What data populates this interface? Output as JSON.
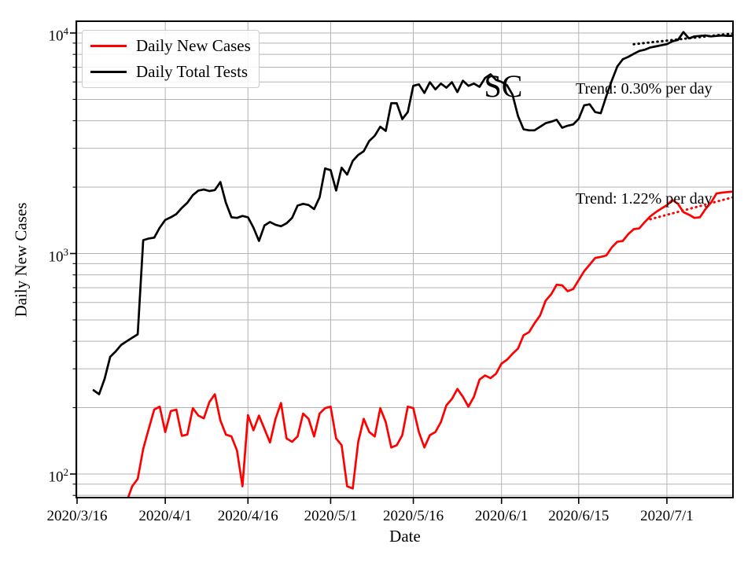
{
  "figure": {
    "state_label": "SC",
    "annotations": {
      "tests_trend": "Trend: 0.30% per day",
      "cases_trend": "Trend: 1.22% per day"
    }
  },
  "chart_data": {
    "type": "line",
    "title": "",
    "xlabel": "Date",
    "ylabel": "Daily New Cases",
    "grid": "both",
    "legend_position": "upper left",
    "colors": {
      "cases": "#ff0000",
      "tests": "#000000",
      "grid": "#b3b3b3",
      "frame": "#000000"
    },
    "x_axis": {
      "label": "Date",
      "ticks": [
        "2020/3/16",
        "2020/4/1",
        "2020/4/16",
        "2020/5/1",
        "2020/5/16",
        "2020/6/1",
        "2020/6/15",
        "2020/7/1"
      ],
      "range": [
        "2020/3/16",
        "2020/7/13"
      ]
    },
    "y_axis": {
      "label": "Daily New Cases",
      "scale": "log",
      "major_ticks": [
        {
          "base": "10",
          "exp": "2",
          "value": 100
        },
        {
          "base": "10",
          "exp": "3",
          "value": 1000
        },
        {
          "base": "10",
          "exp": "4",
          "value": 10000
        }
      ],
      "range": [
        80,
        11300
      ]
    },
    "series": [
      {
        "name": "Daily New Cases",
        "color": "#ff0000",
        "style": "solid",
        "points": [
          [
            "3/25",
            75
          ],
          [
            "3/26",
            88
          ],
          [
            "3/27",
            95
          ],
          [
            "3/28",
            130
          ],
          [
            "3/29",
            160
          ],
          [
            "3/30",
            196
          ],
          [
            "3/31",
            202
          ],
          [
            "4/1",
            155
          ],
          [
            "4/2",
            193
          ],
          [
            "4/3",
            196
          ],
          [
            "4/4",
            149
          ],
          [
            "4/5",
            151
          ],
          [
            "4/6",
            199
          ],
          [
            "4/7",
            184
          ],
          [
            "4/8",
            179
          ],
          [
            "4/9",
            212
          ],
          [
            "4/10",
            230
          ],
          [
            "4/11",
            175
          ],
          [
            "4/12",
            151
          ],
          [
            "4/13",
            148
          ],
          [
            "4/14",
            128
          ],
          [
            "4/15",
            88
          ],
          [
            "4/16",
            185
          ],
          [
            "4/17",
            158
          ],
          [
            "4/18",
            184
          ],
          [
            "4/19",
            160
          ],
          [
            "4/20",
            139
          ],
          [
            "4/21",
            178
          ],
          [
            "4/22",
            210
          ],
          [
            "4/23",
            145
          ],
          [
            "4/24",
            140
          ],
          [
            "4/25",
            148
          ],
          [
            "4/26",
            188
          ],
          [
            "4/27",
            178
          ],
          [
            "4/28",
            148
          ],
          [
            "4/29",
            188
          ],
          [
            "4/30",
            199
          ],
          [
            "5/1",
            202
          ],
          [
            "5/2",
            145
          ],
          [
            "5/3",
            135
          ],
          [
            "5/4",
            88
          ],
          [
            "5/5",
            86
          ],
          [
            "5/6",
            140
          ],
          [
            "5/7",
            178
          ],
          [
            "5/8",
            155
          ],
          [
            "5/9",
            148
          ],
          [
            "5/10",
            199
          ],
          [
            "5/11",
            172
          ],
          [
            "5/12",
            132
          ],
          [
            "5/13",
            135
          ],
          [
            "5/14",
            150
          ],
          [
            "5/15",
            202
          ],
          [
            "5/16",
            199
          ],
          [
            "5/17",
            155
          ],
          [
            "5/18",
            132
          ],
          [
            "5/19",
            150
          ],
          [
            "5/20",
            155
          ],
          [
            "5/21",
            172
          ],
          [
            "5/22",
            205
          ],
          [
            "5/23",
            219
          ],
          [
            "5/24",
            243
          ],
          [
            "5/25",
            224
          ],
          [
            "5/26",
            202
          ],
          [
            "5/27",
            224
          ],
          [
            "5/28",
            268
          ],
          [
            "5/29",
            280
          ],
          [
            "5/30",
            272
          ],
          [
            "5/31",
            285
          ],
          [
            "6/1",
            317
          ],
          [
            "6/2",
            330
          ],
          [
            "6/3",
            351
          ],
          [
            "6/4",
            371
          ],
          [
            "6/5",
            426
          ],
          [
            "6/6",
            440
          ],
          [
            "6/7",
            483
          ],
          [
            "6/8",
            524
          ],
          [
            "6/9",
            611
          ],
          [
            "6/10",
            653
          ],
          [
            "6/11",
            722
          ],
          [
            "6/12",
            717
          ],
          [
            "6/13",
            675
          ],
          [
            "6/14",
            690
          ],
          [
            "6/15",
            758
          ],
          [
            "6/16",
            832
          ],
          [
            "6/17",
            891
          ],
          [
            "6/18",
            955
          ],
          [
            "6/19",
            965
          ],
          [
            "6/20",
            980
          ],
          [
            "6/21",
            1066
          ],
          [
            "6/22",
            1130
          ],
          [
            "6/23",
            1140
          ],
          [
            "6/24",
            1225
          ],
          [
            "6/25",
            1290
          ],
          [
            "6/26",
            1300
          ],
          [
            "6/27",
            1390
          ],
          [
            "6/28",
            1475
          ],
          [
            "6/29",
            1540
          ],
          [
            "6/30",
            1600
          ],
          [
            "7/1",
            1655
          ],
          [
            "7/2",
            1750
          ],
          [
            "7/3",
            1680
          ],
          [
            "7/4",
            1540
          ],
          [
            "7/5",
            1500
          ],
          [
            "7/6",
            1450
          ],
          [
            "7/7",
            1460
          ],
          [
            "7/8",
            1590
          ],
          [
            "7/9",
            1700
          ],
          [
            "7/10",
            1870
          ],
          [
            "7/11",
            1890
          ],
          [
            "7/12",
            1900
          ],
          [
            "7/13",
            1910
          ]
        ]
      },
      {
        "name": "Daily Total Tests",
        "color": "#000000",
        "style": "solid",
        "points": [
          [
            "3/19",
            240
          ],
          [
            "3/20",
            230
          ],
          [
            "3/21",
            270
          ],
          [
            "3/22",
            340
          ],
          [
            "3/23",
            360
          ],
          [
            "3/24",
            385
          ],
          [
            "3/25",
            400
          ],
          [
            "3/26",
            415
          ],
          [
            "3/27",
            430
          ],
          [
            "3/28",
            1150
          ],
          [
            "3/29",
            1170
          ],
          [
            "3/30",
            1180
          ],
          [
            "3/31",
            1310
          ],
          [
            "4/1",
            1420
          ],
          [
            "4/2",
            1460
          ],
          [
            "4/3",
            1510
          ],
          [
            "4/4",
            1610
          ],
          [
            "4/5",
            1700
          ],
          [
            "4/6",
            1840
          ],
          [
            "4/7",
            1930
          ],
          [
            "4/8",
            1950
          ],
          [
            "4/9",
            1920
          ],
          [
            "4/10",
            1940
          ],
          [
            "4/11",
            2110
          ],
          [
            "4/12",
            1700
          ],
          [
            "4/13",
            1460
          ],
          [
            "4/14",
            1450
          ],
          [
            "4/15",
            1480
          ],
          [
            "4/16",
            1460
          ],
          [
            "4/17",
            1310
          ],
          [
            "4/18",
            1140
          ],
          [
            "4/19",
            1340
          ],
          [
            "4/20",
            1390
          ],
          [
            "4/21",
            1350
          ],
          [
            "4/22",
            1330
          ],
          [
            "4/23",
            1370
          ],
          [
            "4/24",
            1450
          ],
          [
            "4/25",
            1650
          ],
          [
            "4/26",
            1680
          ],
          [
            "4/27",
            1660
          ],
          [
            "4/28",
            1590
          ],
          [
            "4/29",
            1800
          ],
          [
            "4/30",
            2430
          ],
          [
            "5/1",
            2390
          ],
          [
            "5/2",
            1930
          ],
          [
            "5/3",
            2450
          ],
          [
            "5/4",
            2280
          ],
          [
            "5/5",
            2630
          ],
          [
            "5/6",
            2800
          ],
          [
            "5/7",
            2910
          ],
          [
            "5/8",
            3240
          ],
          [
            "5/9",
            3420
          ],
          [
            "5/10",
            3760
          ],
          [
            "5/11",
            3600
          ],
          [
            "5/12",
            4810
          ],
          [
            "5/13",
            4800
          ],
          [
            "5/14",
            4070
          ],
          [
            "5/15",
            4380
          ],
          [
            "5/16",
            5760
          ],
          [
            "5/17",
            5850
          ],
          [
            "5/18",
            5350
          ],
          [
            "5/19",
            5980
          ],
          [
            "5/20",
            5550
          ],
          [
            "5/21",
            5900
          ],
          [
            "5/22",
            5650
          ],
          [
            "5/23",
            5980
          ],
          [
            "5/24",
            5400
          ],
          [
            "5/25",
            6080
          ],
          [
            "5/26",
            5760
          ],
          [
            "5/27",
            5900
          ],
          [
            "5/28",
            5700
          ],
          [
            "5/29",
            6250
          ],
          [
            "5/30",
            6500
          ],
          [
            "5/31",
            6130
          ],
          [
            "6/1",
            6000
          ],
          [
            "6/2",
            5800
          ],
          [
            "6/3",
            5250
          ],
          [
            "6/4",
            4200
          ],
          [
            "6/5",
            3660
          ],
          [
            "6/6",
            3620
          ],
          [
            "6/7",
            3620
          ],
          [
            "6/8",
            3760
          ],
          [
            "6/9",
            3900
          ],
          [
            "6/10",
            3960
          ],
          [
            "6/11",
            4040
          ],
          [
            "6/12",
            3720
          ],
          [
            "6/13",
            3800
          ],
          [
            "6/14",
            3850
          ],
          [
            "6/15",
            4080
          ],
          [
            "6/16",
            4700
          ],
          [
            "6/17",
            4750
          ],
          [
            "6/18",
            4380
          ],
          [
            "6/19",
            4330
          ],
          [
            "6/20",
            5170
          ],
          [
            "6/21",
            6080
          ],
          [
            "6/22",
            7050
          ],
          [
            "6/23",
            7600
          ],
          [
            "6/24",
            7800
          ],
          [
            "6/25",
            8050
          ],
          [
            "6/26",
            8290
          ],
          [
            "6/27",
            8400
          ],
          [
            "6/28",
            8600
          ],
          [
            "6/29",
            8700
          ],
          [
            "6/30",
            8800
          ],
          [
            "7/1",
            8900
          ],
          [
            "7/2",
            9170
          ],
          [
            "7/3",
            9300
          ],
          [
            "7/4",
            10100
          ],
          [
            "7/5",
            9450
          ],
          [
            "7/6",
            9650
          ],
          [
            "7/7",
            9700
          ],
          [
            "7/8",
            9750
          ],
          [
            "7/9",
            9650
          ],
          [
            "7/10",
            9700
          ],
          [
            "7/11",
            9750
          ],
          [
            "7/12",
            9700
          ],
          [
            "7/13",
            9720
          ]
        ]
      }
    ],
    "trend_lines": [
      {
        "name": "tests-trend",
        "label": "Trend: 0.30% per day",
        "color": "#000000",
        "style": "dotted",
        "points": [
          [
            "6/25",
            8900
          ],
          [
            "7/13",
            9950
          ]
        ]
      },
      {
        "name": "cases-trend",
        "label": "Trend: 1.22% per day",
        "color": "#ff0000",
        "style": "dotted",
        "points": [
          [
            "6/28",
            1430
          ],
          [
            "7/13",
            1800
          ]
        ]
      }
    ],
    "state_annotation": {
      "text": "SC"
    }
  }
}
